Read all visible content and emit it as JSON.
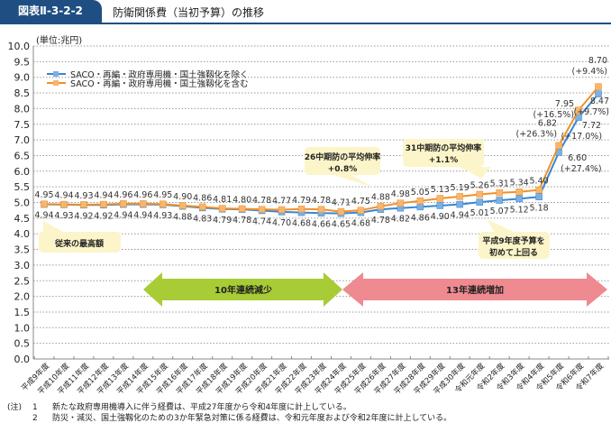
{
  "header": {
    "figure_label": "図表Ⅱ-3-2-2",
    "title": "防衛関係費（当初予算）の推移"
  },
  "chart_data": {
    "type": "line",
    "unit_label": "(単位:兆円)",
    "ylim": [
      0,
      10
    ],
    "y_ticks": [
      "0.0",
      "0.5",
      "1.0",
      "1.5",
      "2.0",
      "2.5",
      "3.0",
      "3.5",
      "4.0",
      "4.5",
      "5.0",
      "5.5",
      "6.0",
      "6.5",
      "7.0",
      "7.5",
      "8.0",
      "8.5",
      "9.0",
      "9.5",
      "10.0"
    ],
    "grid": true,
    "legend_position": "top-left",
    "categories": [
      "平成9年度",
      "平成10年度",
      "平成11年度",
      "平成12年度",
      "平成13年度",
      "平成14年度",
      "平成15年度",
      "平成16年度",
      "平成17年度",
      "平成18年度",
      "平成19年度",
      "平成20年度",
      "平成21年度",
      "平成22年度",
      "平成23年度",
      "平成24年度",
      "平成25年度",
      "平成26年度",
      "平成27年度",
      "平成28年度",
      "平成29年度",
      "平成30年度",
      "令和元年度",
      "令和2年度",
      "令和3年度",
      "令和4年度",
      "令和5年度",
      "令和6年度",
      "令和7年度"
    ],
    "series": [
      {
        "name": "SACO・再編・政府専用機・国土強靱化を除く",
        "color": "#3a86d0",
        "values": [
          4.94,
          4.93,
          4.92,
          4.92,
          4.94,
          4.94,
          4.93,
          4.88,
          4.83,
          4.79,
          4.78,
          4.74,
          4.7,
          4.68,
          4.66,
          4.65,
          4.68,
          4.78,
          4.82,
          4.86,
          4.9,
          4.94,
          5.01,
          5.07,
          5.12,
          5.18,
          6.6,
          7.72,
          8.47
        ],
        "labels": [
          "4.94",
          "4.93",
          "4.92",
          "4.92",
          "4.94",
          "4.94",
          "4.93",
          "4.88",
          "4.83",
          "4.79",
          "4.78",
          "4.74",
          "4.70",
          "4.68",
          "4.66",
          "4.65",
          "4.68",
          "4.78",
          "4.82",
          "4.86",
          "4.90",
          "4.94",
          "5.01",
          "5.07",
          "5.12",
          "5.18",
          "6.60",
          "7.72",
          "8.47"
        ],
        "pct_labels": {
          "26": "(+27.4%)",
          "27": "(+17.0%)",
          "28": "(+9.7%)"
        }
      },
      {
        "name": "SACO・再編・政府専用機・国土強靱化を含む",
        "color": "#f0902a",
        "values": [
          4.95,
          4.94,
          4.93,
          4.94,
          4.96,
          4.96,
          4.95,
          4.9,
          4.86,
          4.81,
          4.8,
          4.78,
          4.77,
          4.79,
          4.78,
          4.71,
          4.75,
          4.88,
          4.98,
          5.05,
          5.13,
          5.19,
          5.26,
          5.31,
          5.34,
          5.4,
          6.82,
          7.95,
          8.7
        ],
        "labels": [
          "4.95",
          "4.94",
          "4.93",
          "4.94",
          "4.96",
          "4.96",
          "4.95",
          "4.90",
          "4.86",
          "4.81",
          "4.80",
          "4.78",
          "4.77",
          "4.79",
          "4.78",
          "4.71",
          "4.75",
          "4.88",
          "4.98",
          "5.05",
          "5.13",
          "5.19",
          "5.26",
          "5.31",
          "5.34",
          "5.40",
          "6.82",
          "7.95",
          "8.70"
        ],
        "pct_labels": {
          "26": "(+26.3%)",
          "27": "(+16.5%)",
          "28": "(+9.4%)"
        }
      }
    ],
    "annotations": {
      "previous_max": "従来の最高額",
      "avg_26": [
        "26中期防の平均伸率",
        "+0.8%"
      ],
      "avg_31": [
        "31中期防の平均伸率",
        "+1.1%"
      ],
      "exceed": [
        "平成9年度予算を",
        "初めて上回る"
      ],
      "decrease": "10年連続減少",
      "increase": "13年連続増加"
    }
  },
  "notes": [
    {
      "prefix": "(注)",
      "num": "1",
      "text": "新たな政府専用機導入に伴う経費は、平成27年度から令和4年度に計上している。"
    },
    {
      "prefix": "",
      "num": "2",
      "text": "防災・減災、国土強靱化のための3か年緊急対策に係る経費は、令和元年度および令和2年度に計上している。"
    }
  ]
}
